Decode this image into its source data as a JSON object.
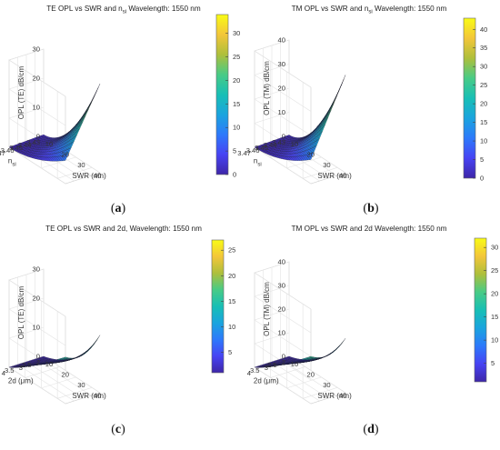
{
  "chart_data": [
    {
      "type": "surface",
      "panel": "a",
      "title": "TE OPL vs SWR and n",
      "title_sub": "si",
      "title_tail": "  Wavelength: 1550 nm",
      "xlabel": "SWR (nm)",
      "ylabel": "n",
      "ylabel_sub": "si",
      "zlabel": "OPL (TE) dB/cm",
      "x_ticks": [
        "10",
        "20",
        "30",
        "40"
      ],
      "y_ticks": [
        "3.47",
        "3.46",
        "3.45",
        "3.44",
        "3.43"
      ],
      "z_ticks": [
        "0",
        "10",
        "20",
        "30"
      ],
      "colorbar_ticks": [
        "0",
        "5",
        "10",
        "15",
        "20",
        "25",
        "30"
      ],
      "xlim": [
        10,
        45
      ],
      "ylim": [
        3.43,
        3.47
      ],
      "zlim": [
        0,
        30
      ],
      "clim": [
        0,
        34
      ],
      "surface": {
        "x": [
          10,
          45
        ],
        "y": [
          3.43,
          3.47
        ],
        "z_at_max_x": 30,
        "z_at_max_x_max_y": 8,
        "shape": "convex"
      },
      "caption": "a"
    },
    {
      "type": "surface",
      "panel": "b",
      "title": "TM OPL vs SWR and n",
      "title_sub": "si",
      "title_tail": "  Wavelength: 1550 nm",
      "xlabel": "SWR (nm)",
      "ylabel": "n",
      "ylabel_sub": "si",
      "zlabel": "OPL (TM) dB/cm",
      "x_ticks": [
        "10",
        "20",
        "30",
        "40"
      ],
      "y_ticks": [
        "3.47",
        "3.46",
        "3.45",
        "3.44",
        "3.43"
      ],
      "z_ticks": [
        "0",
        "10",
        "20",
        "30",
        "40"
      ],
      "colorbar_ticks": [
        "0",
        "5",
        "10",
        "15",
        "20",
        "25",
        "30",
        "35",
        "40"
      ],
      "xlim": [
        10,
        45
      ],
      "ylim": [
        3.43,
        3.47
      ],
      "zlim": [
        0,
        40
      ],
      "clim": [
        0,
        43
      ],
      "surface": {
        "x": [
          10,
          45
        ],
        "y": [
          3.43,
          3.47
        ],
        "z_at_max_x": 40,
        "z_at_max_x_max_y": 10,
        "shape": "convex"
      },
      "caption": "b"
    },
    {
      "type": "surface",
      "panel": "c",
      "title": "TE OPL vs SWR and 2d, Wavelength: 1550 nm",
      "xlabel": "SWR (nm)",
      "ylabel": "2d (μm)",
      "zlabel": "OPL (TE) dB/cm",
      "x_ticks": [
        "10",
        "20",
        "30",
        "40"
      ],
      "y_ticks": [
        "4",
        "3.5",
        "3",
        "2.5",
        "2"
      ],
      "z_ticks": [
        "0",
        "10",
        "20",
        "30"
      ],
      "colorbar_ticks": [
        "5",
        "10",
        "15",
        "20",
        "25"
      ],
      "xlim": [
        10,
        45
      ],
      "ylim": [
        2,
        4
      ],
      "zlim": [
        0,
        30
      ],
      "clim": [
        1,
        27
      ],
      "surface": {
        "x": [
          10,
          45
        ],
        "y": [
          2,
          4
        ],
        "z_at_max_x": 27,
        "z_at_max_x_max_y": 16,
        "shape": "saddle"
      },
      "caption": "c"
    },
    {
      "type": "surface",
      "panel": "d",
      "title": "TM OPL vs SWR and 2d Wavelength: 1550 nm",
      "xlabel": "SWR (nm)",
      "ylabel": "2d (μm)",
      "zlabel": "OPL (TM) dB/cm",
      "x_ticks": [
        "10",
        "20",
        "30",
        "40"
      ],
      "y_ticks": [
        "4",
        "3.5",
        "3",
        "2.5",
        "2"
      ],
      "z_ticks": [
        "0",
        "10",
        "20",
        "30",
        "40"
      ],
      "colorbar_ticks": [
        "5",
        "10",
        "15",
        "20",
        "25",
        "30"
      ],
      "xlim": [
        10,
        45
      ],
      "ylim": [
        2,
        4
      ],
      "zlim": [
        0,
        40
      ],
      "clim": [
        1,
        32
      ],
      "surface": {
        "x": [
          10,
          45
        ],
        "y": [
          2,
          4
        ],
        "z_at_max_x": 32,
        "z_at_max_x_max_y": 20,
        "shape": "saddle"
      },
      "caption": "d"
    }
  ],
  "colormap": [
    "#3e26a8",
    "#4743f3",
    "#2d79fb",
    "#1aa4de",
    "#18bfb5",
    "#48cb86",
    "#aebf3b",
    "#f3c63a",
    "#f9fb15"
  ]
}
